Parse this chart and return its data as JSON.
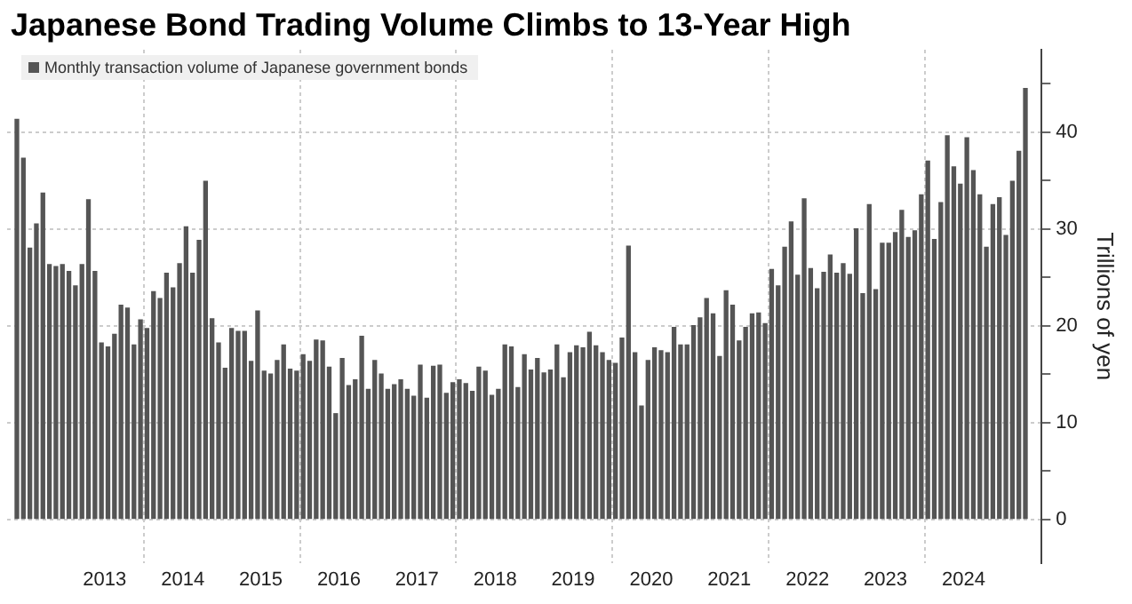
{
  "chart_data": {
    "type": "bar",
    "title": "Japanese Bond Trading Volume Climbs to 13-Year High",
    "legend": "top left",
    "grid": true,
    "ylabel": "Trillions of yen",
    "x": [
      "2012-05",
      "2012-06",
      "2012-07",
      "2012-08",
      "2012-09",
      "2012-10",
      "2012-11",
      "2012-12",
      "2013-01",
      "2013-02",
      "2013-03",
      "2013-04",
      "2013-05",
      "2013-06",
      "2013-07",
      "2013-08",
      "2013-09",
      "2013-10",
      "2013-11",
      "2013-12",
      "2014-01",
      "2014-02",
      "2014-03",
      "2014-04",
      "2014-05",
      "2014-06",
      "2014-07",
      "2014-08",
      "2014-09",
      "2014-10",
      "2014-11",
      "2014-12",
      "2015-01",
      "2015-02",
      "2015-03",
      "2015-04",
      "2015-05",
      "2015-06",
      "2015-07",
      "2015-08",
      "2015-09",
      "2015-10",
      "2015-11",
      "2015-12",
      "2016-01",
      "2016-02",
      "2016-03",
      "2016-04",
      "2016-05",
      "2016-06",
      "2016-07",
      "2016-08",
      "2016-09",
      "2016-10",
      "2016-11",
      "2016-12",
      "2017-01",
      "2017-02",
      "2017-03",
      "2017-04",
      "2017-05",
      "2017-06",
      "2017-07",
      "2017-08",
      "2017-09",
      "2017-10",
      "2017-11",
      "2017-12",
      "2018-01",
      "2018-02",
      "2018-03",
      "2018-04",
      "2018-05",
      "2018-06",
      "2018-07",
      "2018-08",
      "2018-09",
      "2018-10",
      "2018-11",
      "2018-12",
      "2019-01",
      "2019-02",
      "2019-03",
      "2019-04",
      "2019-05",
      "2019-06",
      "2019-07",
      "2019-08",
      "2019-09",
      "2019-10",
      "2019-11",
      "2019-12",
      "2020-01",
      "2020-02",
      "2020-03",
      "2020-04",
      "2020-05",
      "2020-06",
      "2020-07",
      "2020-08",
      "2020-09",
      "2020-10",
      "2020-11",
      "2020-12",
      "2021-01",
      "2021-02",
      "2021-03",
      "2021-04",
      "2021-05",
      "2021-06",
      "2021-07",
      "2021-08",
      "2021-09",
      "2021-10",
      "2021-11",
      "2021-12",
      "2022-01",
      "2022-02",
      "2022-03",
      "2022-04",
      "2022-05",
      "2022-06",
      "2022-07",
      "2022-08",
      "2022-09",
      "2022-10",
      "2022-11",
      "2022-12",
      "2023-01",
      "2023-02",
      "2023-03",
      "2023-04",
      "2023-05",
      "2023-06",
      "2023-07",
      "2023-08",
      "2023-09",
      "2023-10",
      "2023-11",
      "2023-12",
      "2024-01",
      "2024-02",
      "2024-03",
      "2024-04",
      "2024-05",
      "2024-06",
      "2024-07",
      "2024-08",
      "2024-09",
      "2024-10",
      "2024-11",
      "2024-12",
      "2025-01",
      "2025-02",
      "2025-03",
      "2025-04"
    ],
    "series": [
      {
        "name": "Monthly transaction volume of Japanese government bonds",
        "color": "#555555",
        "values": [
          41.3,
          37.3,
          28.0,
          30.5,
          33.7,
          26.3,
          26.1,
          26.3,
          25.6,
          24.1,
          26.3,
          33.0,
          25.6,
          18.2,
          17.8,
          19.1,
          22.1,
          21.8,
          18.0,
          20.6,
          19.7,
          23.5,
          22.8,
          25.4,
          23.9,
          26.4,
          30.2,
          25.4,
          28.8,
          34.9,
          20.7,
          18.2,
          15.6,
          19.7,
          19.4,
          19.4,
          16.3,
          21.5,
          15.3,
          15.0,
          16.4,
          18.0,
          15.5,
          15.3,
          17.0,
          16.3,
          18.5,
          18.4,
          15.7,
          10.9,
          16.6,
          13.8,
          14.4,
          18.9,
          13.4,
          16.4,
          15.0,
          13.4,
          13.9,
          14.4,
          13.4,
          12.7,
          15.9,
          12.5,
          15.8,
          15.9,
          13.0,
          14.1,
          14.4,
          14.0,
          13.2,
          15.7,
          15.3,
          12.8,
          13.4,
          18.0,
          17.8,
          13.6,
          17.0,
          15.4,
          16.6,
          15.1,
          15.4,
          18.0,
          14.6,
          17.2,
          17.9,
          17.7,
          19.3,
          17.9,
          17.2,
          16.4,
          16.1,
          18.7,
          28.2,
          17.2,
          11.7,
          16.4,
          17.7,
          17.4,
          17.2,
          19.8,
          18.0,
          18.0,
          20.0,
          20.8,
          22.8,
          21.2,
          16.8,
          23.6,
          22.1,
          18.4,
          19.8,
          21.2,
          21.3,
          20.2,
          25.8,
          24.1,
          28.1,
          30.7,
          25.2,
          33.1,
          25.9,
          23.8,
          25.5,
          27.3,
          25.4,
          26.4,
          25.3,
          30.0,
          23.3,
          32.5,
          23.7,
          28.5,
          28.5,
          29.6,
          31.9,
          29.1,
          29.8,
          33.5,
          37.0,
          28.9,
          32.7,
          39.6,
          36.4,
          34.6,
          39.4,
          36.0,
          33.5,
          28.1,
          32.5,
          33.2,
          29.3,
          34.9,
          38.0,
          44.5
        ]
      }
    ],
    "xlim": [
      "2012-04",
      "2025-07"
    ],
    "xticks": [
      {
        "value": "2013-07",
        "label": "2013"
      },
      {
        "value": "2014-07",
        "label": "2014"
      },
      {
        "value": "2015-07",
        "label": "2015"
      },
      {
        "value": "2016-07",
        "label": "2016"
      },
      {
        "value": "2017-07",
        "label": "2017"
      },
      {
        "value": "2018-07",
        "label": "2018"
      },
      {
        "value": "2019-07",
        "label": "2019"
      },
      {
        "value": "2020-07",
        "label": "2020"
      },
      {
        "value": "2021-07",
        "label": "2021"
      },
      {
        "value": "2022-07",
        "label": "2022"
      },
      {
        "value": "2023-07",
        "label": "2023"
      },
      {
        "value": "2024-07",
        "label": "2024"
      },
      {
        "value": "2014-01",
        "label": null
      },
      {
        "value": "2016-01",
        "label": null
      },
      {
        "value": "2018-01",
        "label": null
      },
      {
        "value": "2020-01",
        "label": null
      },
      {
        "value": "2022-01",
        "label": null
      },
      {
        "value": "2024-01",
        "label": null
      }
    ],
    "ylim": [
      -4.5,
      48.5
    ],
    "yticks": [
      0,
      10,
      20,
      30,
      40,
      {
        "value": 5,
        "label": null
      },
      {
        "value": 15,
        "label": null
      },
      {
        "value": 25,
        "label": null
      },
      {
        "value": 35,
        "label": null
      },
      {
        "value": 45,
        "label": null
      }
    ]
  }
}
